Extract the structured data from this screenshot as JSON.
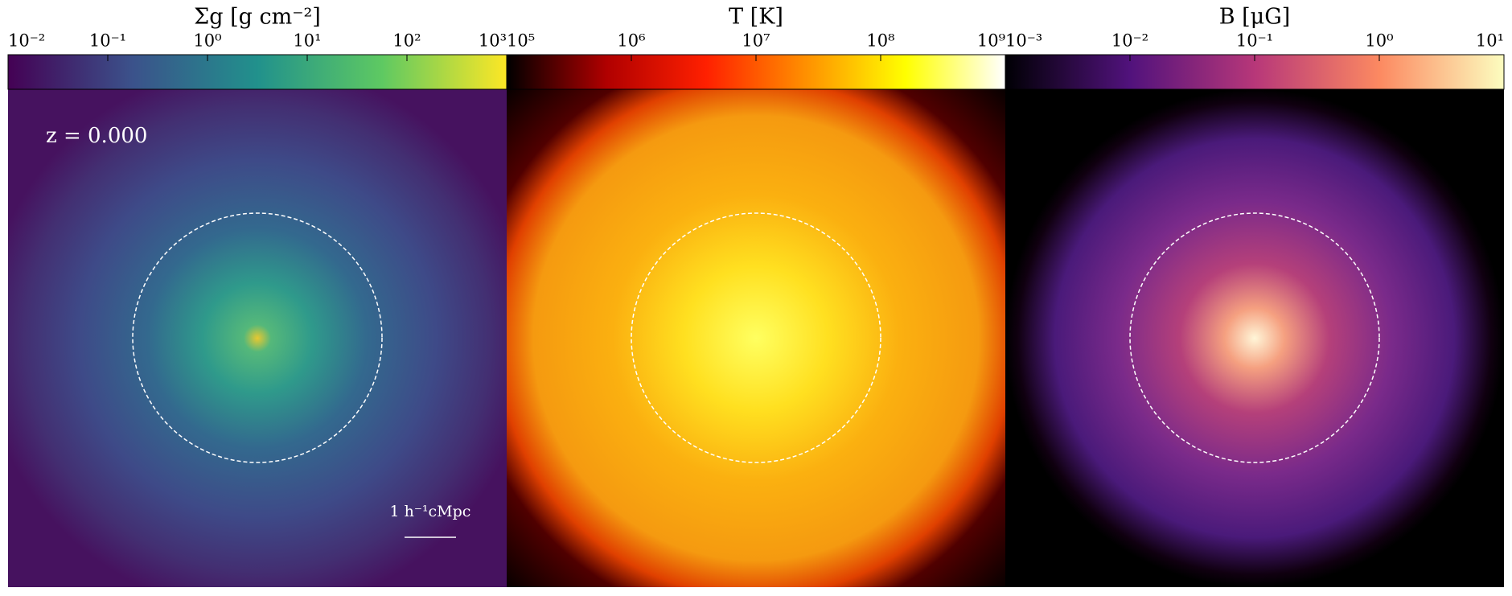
{
  "panels": [
    {
      "colorbar": {
        "label": "Σg [g cm⁻²]",
        "scale": "log",
        "colormap": "viridis",
        "lim": [
          0.01,
          1000
        ],
        "ticks": [
          {
            "value": 0.01,
            "label": "10⁻²"
          },
          {
            "value": 0.1,
            "label": "10⁻¹"
          },
          {
            "value": 1,
            "label": "10⁰"
          },
          {
            "value": 10,
            "label": "10¹"
          },
          {
            "value": 100,
            "label": "10²"
          },
          {
            "value": 1000,
            "label": "10³"
          }
        ]
      },
      "annotations": [
        "z = 0.000",
        "1 h⁻¹cMpc"
      ]
    },
    {
      "colorbar": {
        "label": "T [K]",
        "scale": "log",
        "colormap": "hot",
        "lim": [
          100000,
          1000000000
        ],
        "ticks": [
          {
            "value": 100000,
            "label": "10⁵"
          },
          {
            "value": 1000000,
            "label": "10⁶"
          },
          {
            "value": 10000000,
            "label": "10⁷"
          },
          {
            "value": 100000000,
            "label": "10⁸"
          },
          {
            "value": 1000000000,
            "label": "10⁹"
          }
        ]
      }
    },
    {
      "colorbar": {
        "label": "B [μG]",
        "scale": "log",
        "colormap": "magma",
        "lim": [
          0.001,
          10
        ],
        "ticks": [
          {
            "value": 0.001,
            "label": "10⁻³"
          },
          {
            "value": 0.01,
            "label": "10⁻²"
          },
          {
            "value": 0.1,
            "label": "10⁻¹"
          },
          {
            "value": 1,
            "label": "10⁰"
          },
          {
            "value": 10,
            "label": "10¹"
          }
        ]
      }
    }
  ]
}
